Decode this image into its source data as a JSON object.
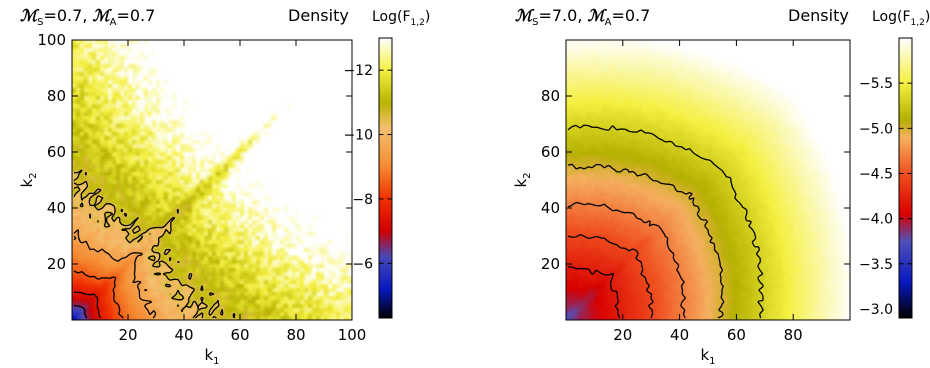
{
  "chart_data": [
    {
      "type": "heatmap",
      "title_ms": "0.7",
      "title_ma": "0.7",
      "quantity": "Density",
      "colorbar_title": "Log(F",
      "colorbar_sub": "1,2",
      "xlabel": "k",
      "xlabel_sub": "1",
      "ylabel": "k",
      "ylabel_sub": "2",
      "xlim": [
        0,
        100
      ],
      "ylim": [
        0,
        100
      ],
      "xticks": [
        20,
        40,
        60,
        80,
        100
      ],
      "xtick_labels": [
        "20",
        "40",
        "60",
        "80",
        "100"
      ],
      "yticks": [
        20,
        40,
        60,
        80,
        100
      ],
      "ytick_labels": [
        "20",
        "40",
        "60",
        "80",
        "100"
      ],
      "colorbar_range": [
        -4.3,
        -13.0
      ],
      "colorbar_ticks": [
        -6,
        -8,
        -10,
        -12
      ],
      "colorbar_tick_labels": [
        "−6",
        "−8",
        "−10",
        "−12"
      ],
      "colorbar_stops": [
        {
          "v": -4.3,
          "color": "#000000"
        },
        {
          "v": -5.2,
          "color": "#0818c0"
        },
        {
          "v": -6.2,
          "color": "#4848b8"
        },
        {
          "v": -7.0,
          "color": "#d00000"
        },
        {
          "v": -8.0,
          "color": "#f03000"
        },
        {
          "v": -9.0,
          "color": "#f58a30"
        },
        {
          "v": -10.2,
          "color": "#f5c070"
        },
        {
          "v": -11.0,
          "color": "#b8b400"
        },
        {
          "v": -12.0,
          "color": "#f5f040"
        },
        {
          "v": -13.0,
          "color": "#ffffff"
        }
      ],
      "contour_levels": [
        -6.5,
        -7.5,
        -8.5,
        -9.5,
        -10.5
      ],
      "grid": false
    },
    {
      "type": "heatmap",
      "title_ms": "7.0",
      "title_ma": "0.7",
      "quantity": "Density",
      "colorbar_title": "Log(F",
      "colorbar_sub": "1,2",
      "xlabel": "k",
      "xlabel_sub": "1",
      "ylabel": "k",
      "ylabel_sub": "2",
      "xlim": [
        0,
        100
      ],
      "ylim": [
        0,
        100
      ],
      "xticks": [
        20,
        40,
        60,
        80
      ],
      "xtick_labels": [
        "20",
        "40",
        "60",
        "80"
      ],
      "yticks": [
        20,
        40,
        60,
        80
      ],
      "ytick_labels": [
        "20",
        "40",
        "60",
        "80"
      ],
      "colorbar_range": [
        -2.9,
        -6.0
      ],
      "colorbar_ticks": [
        -3.0,
        -3.5,
        -4.0,
        -4.5,
        -5.0,
        -5.5
      ],
      "colorbar_tick_labels": [
        "−3.0",
        "−3.5",
        "−4.0",
        "−4.5",
        "−5.0",
        "−5.5"
      ],
      "colorbar_stops": [
        {
          "v": -2.9,
          "color": "#000000"
        },
        {
          "v": -3.3,
          "color": "#0818c0"
        },
        {
          "v": -3.75,
          "color": "#5050b8"
        },
        {
          "v": -4.05,
          "color": "#d80000"
        },
        {
          "v": -4.5,
          "color": "#f05020"
        },
        {
          "v": -4.9,
          "color": "#f5b060"
        },
        {
          "v": -5.1,
          "color": "#b4b000"
        },
        {
          "v": -5.5,
          "color": "#f5f040"
        },
        {
          "v": -6.0,
          "color": "#ffffff"
        }
      ],
      "contour_levels": [
        -4.2,
        -4.45,
        -4.7,
        -5.0,
        -5.3
      ],
      "grid": false
    }
  ]
}
